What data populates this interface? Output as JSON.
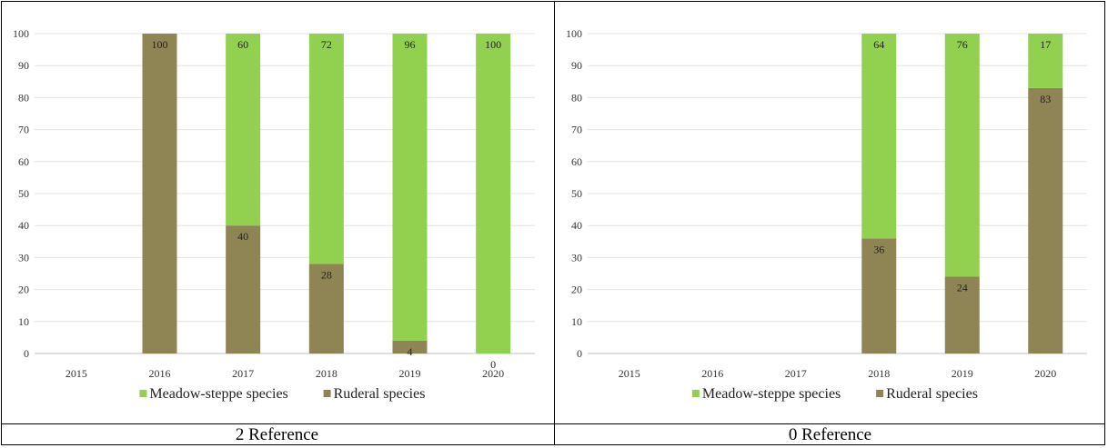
{
  "chart_data": [
    {
      "type": "bar",
      "stacked": true,
      "caption": "2 Reference",
      "categories": [
        "2015",
        "2016",
        "2017",
        "2018",
        "2019",
        "2020"
      ],
      "series": [
        {
          "name": "Ruderal species",
          "color": "#8f8554",
          "values": [
            null,
            100,
            40,
            28,
            4,
            0
          ]
        },
        {
          "name": "Meadow-steppe species",
          "color": "#92d050",
          "values": [
            null,
            null,
            60,
            72,
            96,
            100
          ]
        }
      ],
      "legend_order": [
        "Meadow-steppe species",
        "Ruderal species"
      ],
      "y_ticks": [
        0,
        10,
        20,
        30,
        40,
        50,
        60,
        70,
        80,
        90,
        100
      ],
      "ylim": [
        0,
        100
      ],
      "grid": true,
      "legend_position": "bottom"
    },
    {
      "type": "bar",
      "stacked": true,
      "caption": "0 Reference",
      "categories": [
        "2015",
        "2016",
        "2017",
        "2018",
        "2019",
        "2020"
      ],
      "series": [
        {
          "name": "Ruderal species",
          "color": "#8f8554",
          "values": [
            null,
            null,
            null,
            36,
            24,
            83
          ]
        },
        {
          "name": "Meadow-steppe species",
          "color": "#92d050",
          "values": [
            null,
            null,
            null,
            64,
            76,
            17
          ]
        }
      ],
      "legend_order": [
        "Meadow-steppe species",
        "Ruderal species"
      ],
      "y_ticks": [
        0,
        10,
        20,
        30,
        40,
        50,
        60,
        70,
        80,
        90,
        100
      ],
      "ylim": [
        0,
        100
      ],
      "grid": true,
      "legend_position": "bottom"
    }
  ]
}
